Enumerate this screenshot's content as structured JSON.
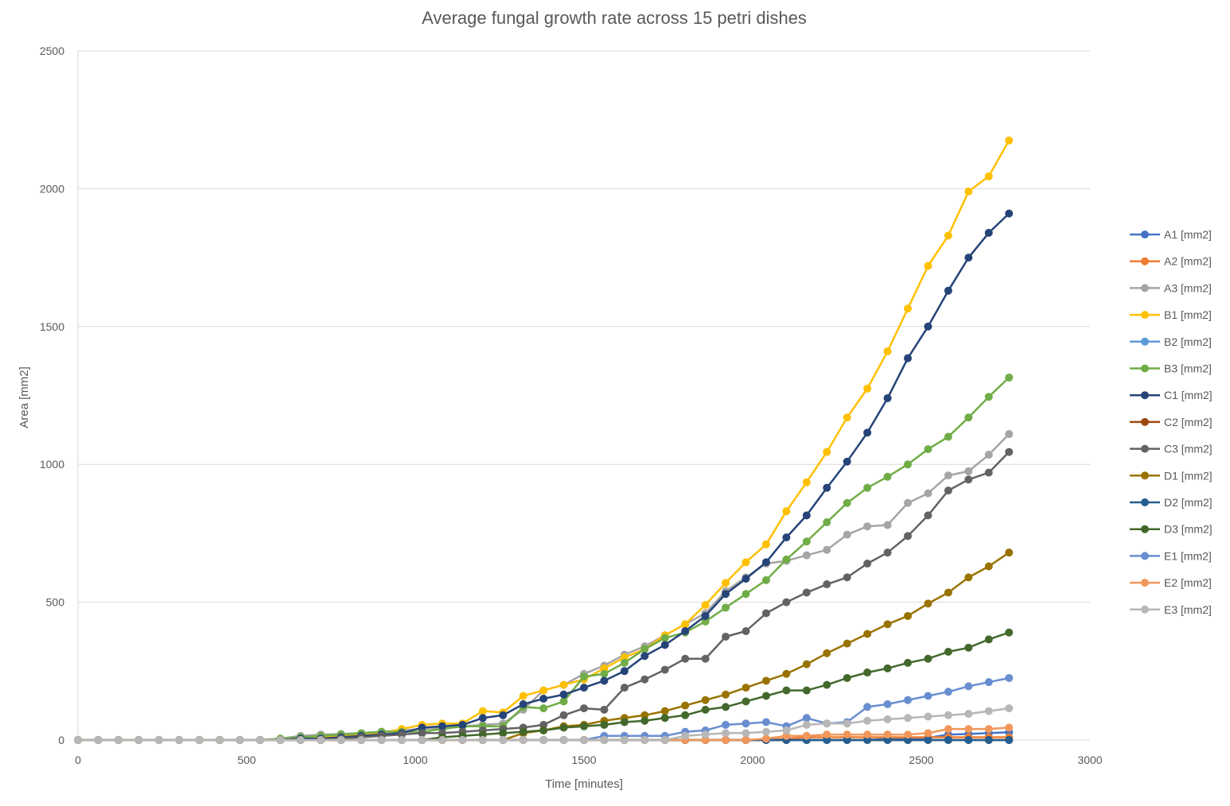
{
  "chart_data": {
    "type": "line",
    "title": "Average fungal growth rate across 15 petri dishes",
    "xlabel": "Time [minutes]",
    "ylabel": "Area [mm2]",
    "xlim": [
      0,
      3000
    ],
    "ylim": [
      0,
      2500
    ],
    "xticks": [
      0,
      500,
      1000,
      1500,
      2000,
      2500,
      3000
    ],
    "yticks": [
      0,
      500,
      1000,
      1500,
      2000,
      2500
    ],
    "grid": "horizontal",
    "legend_position": "right",
    "x": [
      0,
      60,
      120,
      180,
      240,
      300,
      360,
      420,
      480,
      540,
      600,
      660,
      720,
      780,
      840,
      900,
      960,
      1020,
      1080,
      1140,
      1200,
      1260,
      1320,
      1380,
      1440,
      1500,
      1560,
      1620,
      1680,
      1740,
      1800,
      1860,
      1920,
      1980,
      2040,
      2100,
      2160,
      2220,
      2280,
      2340,
      2400,
      2460,
      2520,
      2580,
      2640,
      2700,
      2760
    ],
    "series": [
      {
        "name": "A1 [mm2]",
        "color": "#4472C4",
        "values": [
          0,
          0,
          0,
          0,
          0,
          0,
          0,
          0,
          0,
          0,
          0,
          0,
          0,
          0,
          0,
          0,
          0,
          0,
          0,
          0,
          0,
          0,
          0,
          0,
          0,
          0,
          0,
          0,
          0,
          0,
          0,
          0,
          0,
          0,
          0,
          0,
          0,
          0,
          0,
          0,
          5,
          5,
          8,
          20,
          22,
          25,
          28
        ]
      },
      {
        "name": "A2 [mm2]",
        "color": "#ED7D31",
        "values": [
          0,
          0,
          0,
          0,
          0,
          0,
          0,
          0,
          0,
          0,
          0,
          0,
          0,
          0,
          0,
          0,
          0,
          0,
          0,
          0,
          0,
          0,
          0,
          0,
          0,
          0,
          0,
          0,
          0,
          0,
          0,
          0,
          0,
          0,
          0,
          5,
          10,
          10,
          10,
          10,
          10,
          10,
          10,
          10,
          10,
          10,
          10
        ]
      },
      {
        "name": "A3 [mm2]",
        "color": "#A5A5A5",
        "values": [
          0,
          0,
          0,
          0,
          0,
          0,
          0,
          0,
          0,
          0,
          5,
          15,
          20,
          22,
          25,
          30,
          35,
          40,
          45,
          50,
          55,
          60,
          110,
          180,
          200,
          240,
          270,
          310,
          340,
          380,
          420,
          460,
          540,
          590,
          640,
          650,
          670,
          690,
          745,
          775,
          780,
          860,
          895,
          960,
          975,
          1035,
          1110
        ]
      },
      {
        "name": "B1 [mm2]",
        "color": "#FFC000",
        "values": [
          0,
          0,
          0,
          0,
          0,
          0,
          0,
          0,
          0,
          0,
          0,
          5,
          10,
          15,
          20,
          25,
          40,
          55,
          60,
          60,
          105,
          100,
          160,
          180,
          200,
          220,
          260,
          300,
          330,
          380,
          420,
          490,
          570,
          645,
          710,
          830,
          935,
          1045,
          1170,
          1275,
          1410,
          1565,
          1720,
          1830,
          1990,
          2045,
          2175
        ]
      },
      {
        "name": "B2 [mm2]",
        "color": "#5B9BD5",
        "values": [
          0,
          0,
          0,
          0,
          0,
          0,
          0,
          0,
          0,
          0,
          0,
          0,
          0,
          0,
          0,
          0,
          0,
          0,
          0,
          0,
          0,
          0,
          0,
          0,
          0,
          0,
          0,
          0,
          0,
          0,
          0,
          0,
          0,
          0,
          0,
          0,
          0,
          0,
          0,
          0,
          0,
          0,
          0,
          0,
          0,
          0,
          0
        ]
      },
      {
        "name": "B3 [mm2]",
        "color": "#70AD47",
        "values": [
          0,
          0,
          0,
          0,
          0,
          0,
          0,
          0,
          0,
          0,
          5,
          10,
          15,
          20,
          25,
          30,
          30,
          30,
          40,
          50,
          50,
          50,
          120,
          115,
          140,
          230,
          240,
          280,
          330,
          370,
          390,
          430,
          480,
          530,
          580,
          655,
          720,
          790,
          860,
          915,
          955,
          1000,
          1055,
          1100,
          1170,
          1245,
          1315
        ]
      },
      {
        "name": "C1 [mm2]",
        "color": "#264478",
        "values": [
          0,
          0,
          0,
          0,
          0,
          0,
          0,
          0,
          0,
          0,
          0,
          5,
          5,
          10,
          15,
          20,
          25,
          45,
          50,
          55,
          80,
          90,
          130,
          150,
          165,
          190,
          215,
          250,
          305,
          345,
          395,
          450,
          530,
          585,
          645,
          735,
          815,
          915,
          1010,
          1115,
          1240,
          1385,
          1500,
          1630,
          1750,
          1840,
          1910
        ]
      },
      {
        "name": "C2 [mm2]",
        "color": "#9E480E",
        "values": [
          0,
          0,
          0,
          0,
          0,
          0,
          0,
          0,
          0,
          0,
          0,
          0,
          0,
          0,
          0,
          0,
          0,
          0,
          0,
          0,
          0,
          0,
          0,
          0,
          0,
          0,
          0,
          0,
          0,
          0,
          0,
          0,
          0,
          0,
          0,
          0,
          0,
          0,
          0,
          0,
          0,
          0,
          0,
          0,
          0,
          0,
          0
        ]
      },
      {
        "name": "C3 [mm2]",
        "color": "#636363",
        "values": [
          0,
          0,
          0,
          0,
          0,
          0,
          0,
          0,
          0,
          0,
          0,
          0,
          0,
          5,
          10,
          15,
          20,
          25,
          25,
          30,
          35,
          40,
          45,
          55,
          90,
          115,
          110,
          190,
          220,
          255,
          295,
          295,
          375,
          395,
          460,
          500,
          535,
          565,
          590,
          640,
          680,
          740,
          815,
          905,
          945,
          970,
          1045
        ]
      },
      {
        "name": "D1 [mm2]",
        "color": "#997300",
        "values": [
          0,
          0,
          0,
          0,
          0,
          0,
          0,
          0,
          0,
          0,
          0,
          0,
          0,
          0,
          0,
          0,
          0,
          0,
          0,
          0,
          0,
          0,
          25,
          35,
          50,
          55,
          70,
          80,
          90,
          105,
          125,
          145,
          165,
          190,
          215,
          240,
          275,
          315,
          350,
          385,
          420,
          450,
          495,
          535,
          590,
          630,
          680
        ]
      },
      {
        "name": "D2 [mm2]",
        "color": "#255E91",
        "values": [
          0,
          0,
          0,
          0,
          0,
          0,
          0,
          0,
          0,
          0,
          0,
          0,
          0,
          0,
          0,
          0,
          0,
          0,
          0,
          0,
          0,
          0,
          0,
          0,
          0,
          0,
          0,
          0,
          0,
          0,
          0,
          0,
          0,
          0,
          0,
          0,
          0,
          0,
          0,
          0,
          0,
          0,
          0,
          0,
          0,
          0,
          0
        ]
      },
      {
        "name": "D3 [mm2]",
        "color": "#43682B",
        "values": [
          0,
          0,
          0,
          0,
          0,
          0,
          0,
          0,
          0,
          0,
          0,
          0,
          0,
          0,
          0,
          0,
          0,
          0,
          10,
          15,
          20,
          25,
          30,
          35,
          45,
          50,
          55,
          65,
          70,
          80,
          90,
          110,
          120,
          140,
          160,
          180,
          180,
          200,
          225,
          245,
          260,
          280,
          295,
          320,
          335,
          365,
          390
        ]
      },
      {
        "name": "E1 [mm2]",
        "color": "#698ED0",
        "values": [
          0,
          0,
          0,
          0,
          0,
          0,
          0,
          0,
          0,
          0,
          0,
          0,
          0,
          0,
          0,
          0,
          0,
          0,
          0,
          0,
          0,
          0,
          0,
          0,
          0,
          0,
          15,
          15,
          15,
          15,
          30,
          35,
          55,
          60,
          65,
          50,
          80,
          60,
          65,
          120,
          130,
          145,
          160,
          175,
          195,
          210,
          225
        ]
      },
      {
        "name": "E2 [mm2]",
        "color": "#F1975A",
        "values": [
          0,
          0,
          0,
          0,
          0,
          0,
          0,
          0,
          0,
          0,
          0,
          0,
          0,
          0,
          0,
          0,
          0,
          0,
          0,
          0,
          0,
          0,
          0,
          0,
          0,
          0,
          0,
          0,
          0,
          0,
          0,
          0,
          0,
          0,
          5,
          15,
          15,
          20,
          20,
          20,
          20,
          20,
          25,
          40,
          40,
          40,
          45
        ]
      },
      {
        "name": "E3 [mm2]",
        "color": "#B7B7B7",
        "values": [
          0,
          0,
          0,
          0,
          0,
          0,
          0,
          0,
          0,
          0,
          0,
          0,
          0,
          0,
          0,
          0,
          0,
          0,
          0,
          0,
          0,
          0,
          0,
          0,
          0,
          0,
          0,
          0,
          0,
          0,
          15,
          20,
          25,
          25,
          30,
          35,
          55,
          60,
          60,
          70,
          75,
          80,
          85,
          90,
          95,
          105,
          115
        ]
      }
    ]
  }
}
